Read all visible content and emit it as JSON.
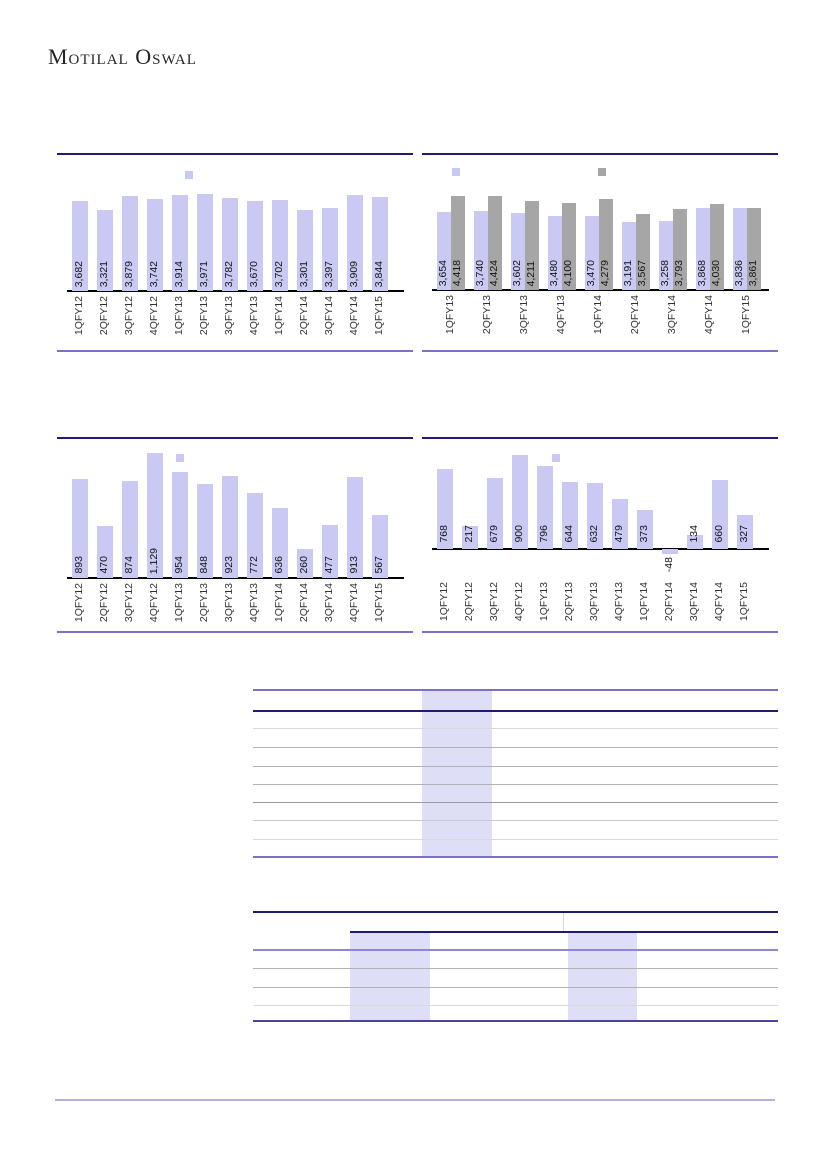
{
  "page": {
    "logo": "Motilal Oswal"
  },
  "colors": {
    "navy_rule": "#1f1b6e",
    "purple_rule": "#7e6fc9",
    "table_mid_rule": "#8a8ace",
    "table_bottom_rule": "#4d4399",
    "footer_rule": "#b5aede",
    "highlight_column": "#dedef7",
    "bar_purple": "#c9c9f4",
    "bar_gray": "#a6a6a6",
    "axis_line": "#000000"
  },
  "chart_data": [
    {
      "id": "chart-1",
      "type": "bar",
      "title": "",
      "categories": [
        "1QFY12",
        "2QFY12",
        "3QFY12",
        "4QFY12",
        "1QFY13",
        "2QFY13",
        "3QFY13",
        "4QFY13",
        "1QFY14",
        "2QFY14",
        "3QFY14",
        "4QFY14",
        "1QFY15"
      ],
      "series": [
        {
          "name": "series-1",
          "color": "#c9c9f4",
          "values": [
            3682,
            3321,
            3879,
            3742,
            3914,
            3971,
            3782,
            3670,
            3702,
            3301,
            3397,
            3909,
            3844
          ]
        }
      ],
      "value_labels": [
        "3,682",
        "3,321",
        "3,879",
        "3,742",
        "3,914",
        "3,971",
        "3,782",
        "3,670",
        "3,702",
        "3,301",
        "3,397",
        "3,909",
        "3,844"
      ],
      "xlabel": "",
      "ylabel": "",
      "grid": false,
      "legend_position": "top",
      "ylim": [
        0,
        4100
      ]
    },
    {
      "id": "chart-2",
      "type": "bar",
      "title": "",
      "categories": [
        "1QFY13",
        "2QFY13",
        "3QFY13",
        "4QFY13",
        "1QFY14",
        "2QFY14",
        "3QFY14",
        "4QFY14",
        "1QFY15"
      ],
      "series": [
        {
          "name": "series-1",
          "color": "#c9c9f4",
          "values": [
            3654,
            3740,
            3602,
            3480,
            3470,
            3191,
            3258,
            3868,
            3836
          ]
        },
        {
          "name": "series-2",
          "color": "#a6a6a6",
          "values": [
            4418,
            4424,
            4211,
            4100,
            4279,
            3567,
            3793,
            4030,
            3861
          ]
        }
      ],
      "value_labels_series1": [
        "3,654",
        "3,740",
        "3,602",
        "3,480",
        "3,470",
        "3,191",
        "3,258",
        "3,868",
        "3,836"
      ],
      "value_labels_series2": [
        "4,418",
        "4,424",
        "4,211",
        "4,100",
        "4,279",
        "3,567",
        "3,793",
        "4,030",
        "3,861"
      ],
      "xlabel": "",
      "ylabel": "",
      "grid": false,
      "legend_position": "top",
      "ylim": [
        0,
        4600
      ]
    },
    {
      "id": "chart-3",
      "type": "bar",
      "title": "",
      "categories": [
        "1QFY12",
        "2QFY12",
        "3QFY12",
        "4QFY12",
        "1QFY13",
        "2QFY13",
        "3QFY13",
        "4QFY13",
        "1QFY14",
        "2QFY14",
        "3QFY14",
        "4QFY14",
        "1QFY15"
      ],
      "series": [
        {
          "name": "series-1",
          "color": "#c9c9f4",
          "values": [
            893,
            470,
            874,
            1129,
            954,
            848,
            923,
            772,
            636,
            260,
            477,
            913,
            567
          ]
        }
      ],
      "value_labels": [
        "893",
        "470",
        "874",
        "1,129",
        "954",
        "848",
        "923",
        "772",
        "636",
        "260",
        "477",
        "913",
        "567"
      ],
      "xlabel": "",
      "ylabel": "",
      "grid": false,
      "legend_position": "top",
      "ylim": [
        0,
        1250
      ]
    },
    {
      "id": "chart-4",
      "type": "bar",
      "title": "",
      "categories": [
        "1QFY12",
        "2QFY12",
        "3QFY12",
        "4QFY12",
        "1QFY13",
        "2QFY13",
        "3QFY13",
        "4QFY13",
        "1QFY14",
        "2QFY14",
        "3QFY14",
        "4QFY14",
        "1QFY15"
      ],
      "series": [
        {
          "name": "series-1",
          "color": "#c9c9f4",
          "values": [
            768,
            217,
            679,
            900,
            796,
            644,
            632,
            479,
            373,
            -48,
            134,
            660,
            327
          ]
        }
      ],
      "value_labels": [
        "768",
        "217",
        "679",
        "900",
        "796",
        "644",
        "632",
        "479",
        "373",
        "-48",
        "134",
        "660",
        "327"
      ],
      "xlabel": "",
      "ylabel": "",
      "grid": false,
      "legend_position": "top",
      "ylim": [
        -120,
        1000
      ]
    }
  ],
  "tables": [
    {
      "id": "table-1",
      "visible_text": "",
      "highlighted_columns": 1,
      "data_rows": 8
    },
    {
      "id": "table-2",
      "visible_text": "",
      "highlighted_columns": 2,
      "data_rows": 5
    }
  ]
}
